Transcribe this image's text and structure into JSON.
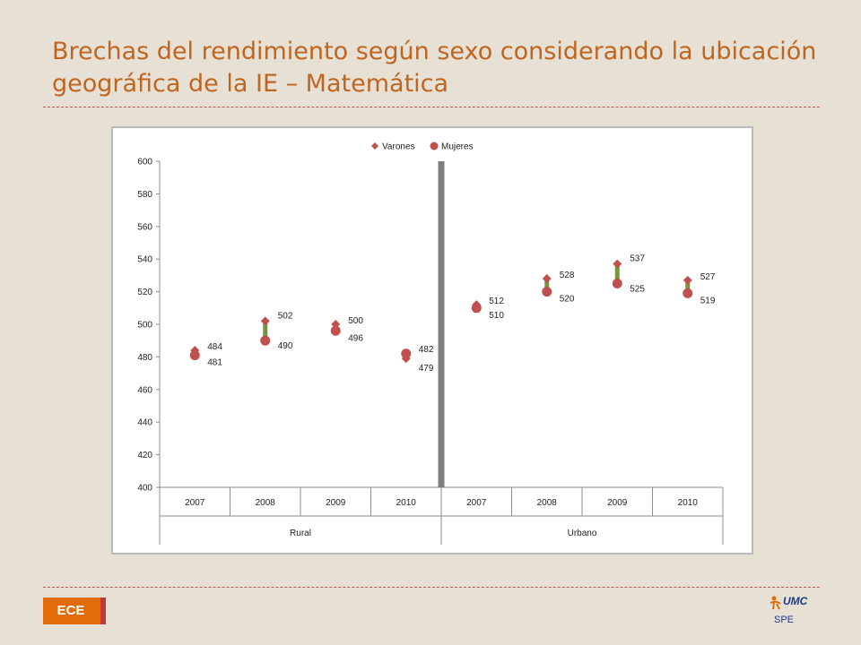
{
  "slide": {
    "title_line1": "Brechas del rendimiento según sexo considerando la ubicación",
    "title_line2": "geográfica de la IE – Matemática",
    "footer_badge": "ECE",
    "logo_text": "UMC",
    "logo_sub": "SPE"
  },
  "colors": {
    "accent": "#c0651f",
    "varones": "#c0504d",
    "mujeres": "#c0504d",
    "gap_bar": "#77933c",
    "divider": "#7f7f7f"
  },
  "chart_data": {
    "type": "scatter",
    "title": "",
    "ylim": [
      400,
      600
    ],
    "yticks": [
      400,
      420,
      440,
      460,
      480,
      500,
      520,
      540,
      560,
      580,
      600
    ],
    "categories": [
      "2007",
      "2008",
      "2009",
      "2010",
      "2007",
      "2008",
      "2009",
      "2010"
    ],
    "groups": [
      {
        "label": "Rural",
        "count": 4
      },
      {
        "label": "Urbano",
        "count": 4
      }
    ],
    "legend": {
      "position": "top",
      "entries": [
        "Varones",
        "Mujeres"
      ]
    },
    "series": [
      {
        "name": "Varones",
        "marker": "diamond",
        "values": [
          484,
          502,
          500,
          479,
          512,
          528,
          537,
          527
        ]
      },
      {
        "name": "Mujeres",
        "marker": "circle",
        "values": [
          481,
          490,
          496,
          482,
          510,
          520,
          525,
          519
        ]
      }
    ],
    "grid": false
  }
}
